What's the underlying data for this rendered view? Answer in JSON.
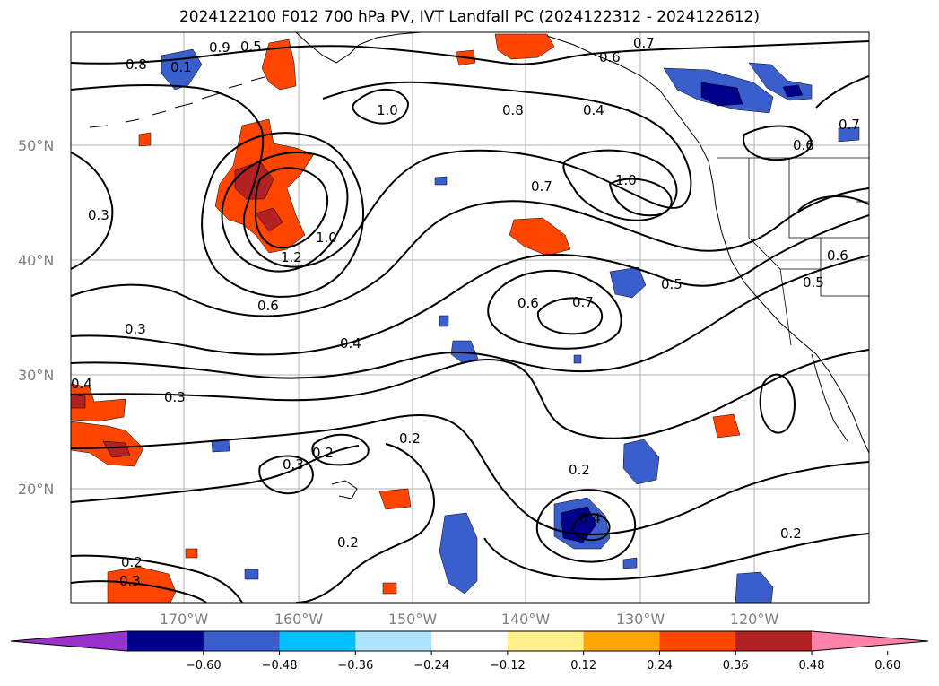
{
  "title": "2024122100 F012 700 hPa PV, IVT Landfall PC (2024122312 - 2024122612)",
  "map": {
    "lat_labels": [
      "50°N",
      "40°N",
      "30°N",
      "20°N"
    ],
    "lon_labels": [
      "170°W",
      "160°W",
      "150°W",
      "140°W",
      "130°W",
      "120°W"
    ],
    "grid": true
  },
  "contour_labels": [
    "0.8",
    "0.1",
    "0.9",
    "0.5",
    "0.7",
    "0.6",
    "0.4",
    "1.0",
    "0.8",
    "0.7",
    "1.0",
    "0.3",
    "1.2",
    "1.0",
    "0.6",
    "0.6",
    "0.7",
    "0.5",
    "0.4",
    "0.3",
    "0.4",
    "0.3",
    "0.2",
    "0.2",
    "0.3",
    "0.2",
    "0.4",
    "0.2",
    "0.2",
    "0.2",
    "0.3",
    "0.6",
    "0.7",
    "0.6",
    "0.5"
  ],
  "colorbar": {
    "ticks": [
      "−0.60",
      "−0.48",
      "−0.36",
      "−0.24",
      "−0.12",
      "0.12",
      "0.24",
      "0.36",
      "0.48",
      "0.60"
    ],
    "colors": [
      "#9932cc",
      "#00008b",
      "#3a5fcd",
      "#00bfff",
      "#b0e2ff",
      "#ffffff",
      "#fff08c",
      "#ffa500",
      "#ff4500",
      "#b22222",
      "#ff82ab"
    ]
  }
}
